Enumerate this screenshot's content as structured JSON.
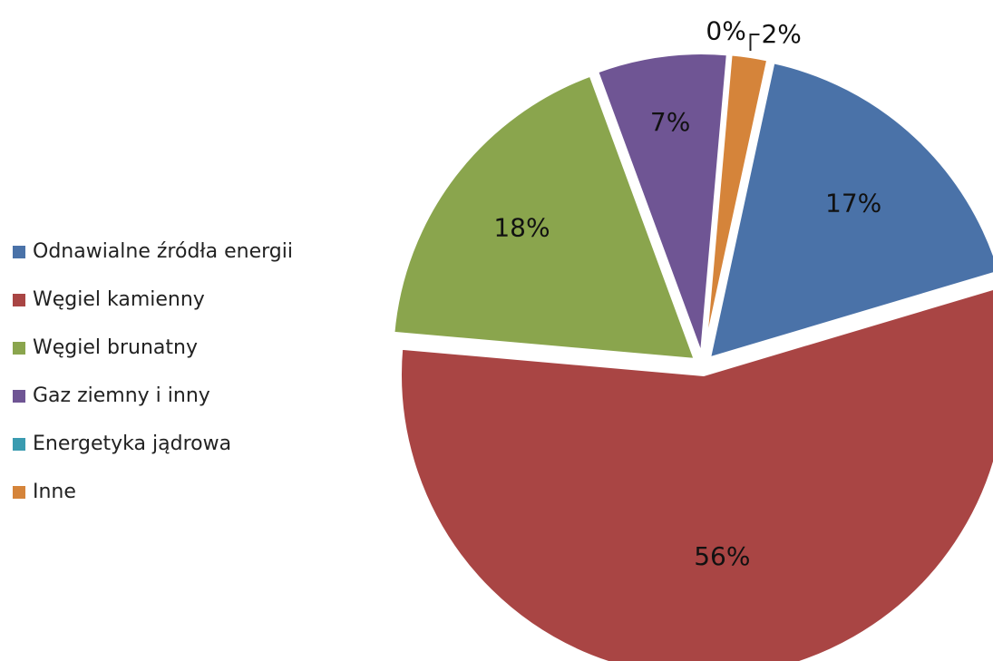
{
  "chart_data": {
    "type": "pie",
    "categories": [
      "Odnawialne źródła energii",
      "Węgiel kamienny",
      "Węgiel brunatny",
      "Gaz ziemny i inny",
      "Energetyka jądrowa",
      "Inne"
    ],
    "values": [
      17,
      56,
      18,
      7,
      0,
      2
    ],
    "data_labels": [
      "17%",
      "56%",
      "18%",
      "7%",
      "0%",
      "2%"
    ],
    "colors": [
      "#4a72a8",
      "#a94544",
      "#8aa54d",
      "#6f5594",
      "#3a9bb0",
      "#d5843a"
    ],
    "exploded": true,
    "legend_position": "left"
  }
}
